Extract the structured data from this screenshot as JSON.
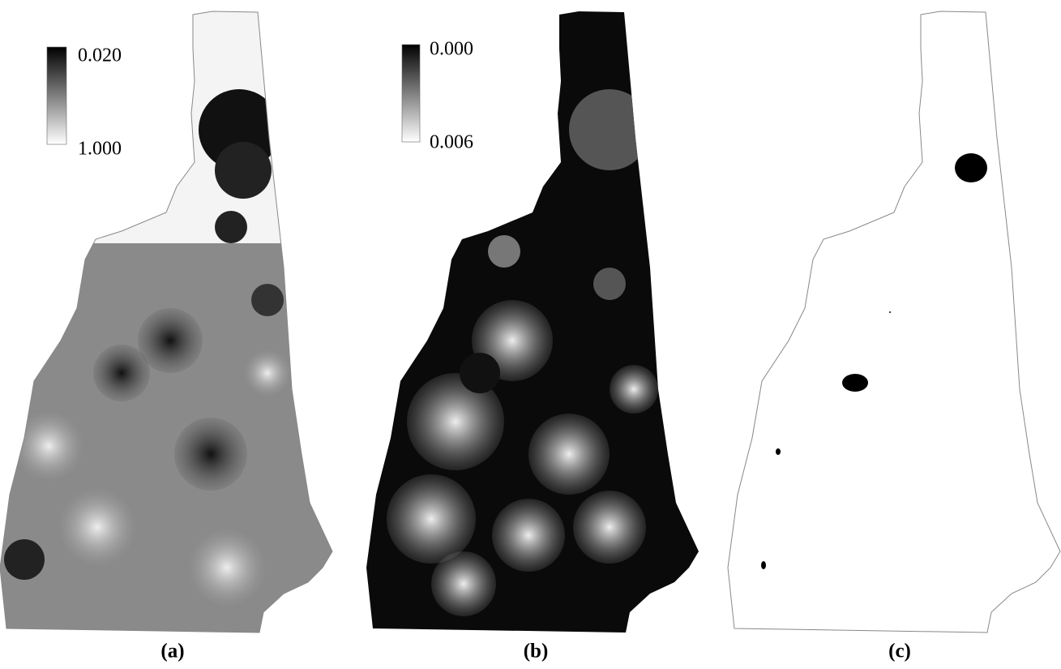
{
  "panels": [
    {
      "label": "(a)",
      "legend": {
        "top": "0.020",
        "bottom": "1.000"
      }
    },
    {
      "label": "(b)",
      "legend": {
        "top": "0.000",
        "bottom": "0.006"
      }
    },
    {
      "label": "(c)"
    }
  ]
}
